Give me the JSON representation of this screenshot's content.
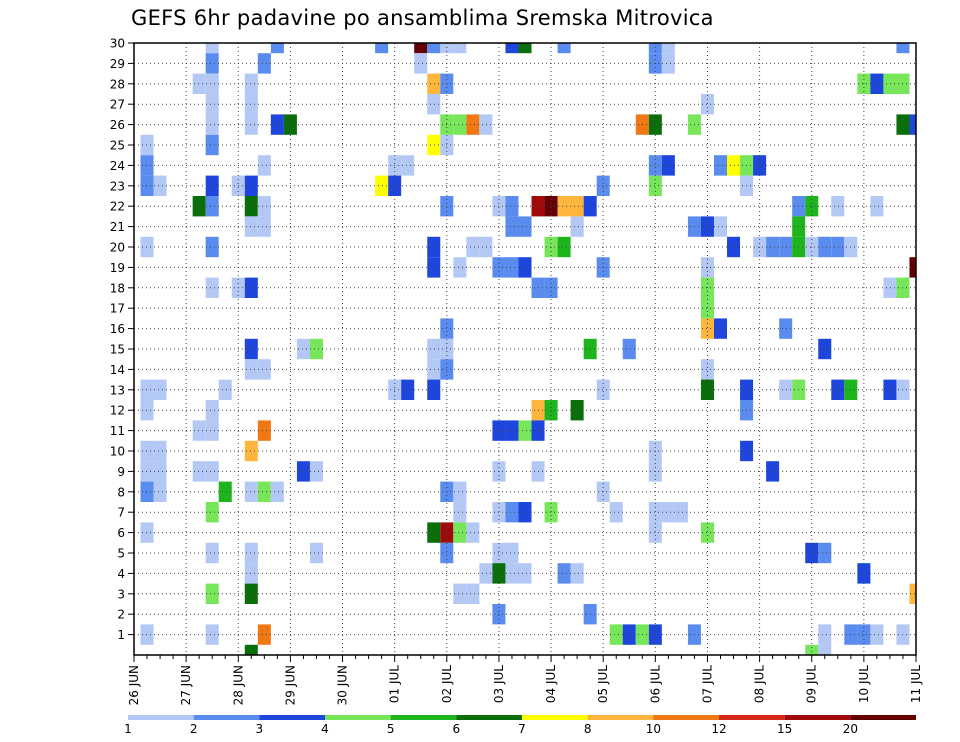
{
  "chart_data": {
    "type": "heatmap",
    "title": "GEFS 6hr padavine po ansamblima Sremska Mitrovica",
    "xlabel": "",
    "ylabel": "",
    "y_range": [
      1,
      30
    ],
    "y_ticks": [
      1,
      2,
      3,
      4,
      5,
      6,
      7,
      8,
      9,
      10,
      11,
      12,
      13,
      14,
      15,
      16,
      17,
      18,
      19,
      20,
      21,
      22,
      23,
      24,
      25,
      26,
      27,
      28,
      29,
      30
    ],
    "x_range": [
      0,
      60
    ],
    "x_ticks": [
      {
        "x": 0,
        "label": "26 JUN"
      },
      {
        "x": 4,
        "label": "27 JUN"
      },
      {
        "x": 8,
        "label": "28 JUN"
      },
      {
        "x": 12,
        "label": "29 JUN"
      },
      {
        "x": 16,
        "label": "30 JUN"
      },
      {
        "x": 20,
        "label": "01 JUL"
      },
      {
        "x": 24,
        "label": "02 JUL"
      },
      {
        "x": 28,
        "label": "03 JUL"
      },
      {
        "x": 32,
        "label": "04 JUL"
      },
      {
        "x": 36,
        "label": "05 JUL"
      },
      {
        "x": 40,
        "label": "06 JUL"
      },
      {
        "x": 44,
        "label": "07 JUL"
      },
      {
        "x": 48,
        "label": "08 JUL"
      },
      {
        "x": 52,
        "label": "09 JUL"
      },
      {
        "x": 56,
        "label": "10 JUL"
      },
      {
        "x": 60,
        "label": "11 JUL"
      }
    ],
    "grid": true,
    "legend": {
      "placement": "bottom",
      "boundaries": [
        "1",
        "2",
        "3",
        "4",
        "5",
        "6",
        "7",
        "8",
        "10",
        "12",
        "15",
        "20"
      ],
      "colors": [
        "#b4c8f5",
        "#5a8cf0",
        "#1e46dc",
        "#78e65a",
        "#1eb41e",
        "#0a6e0a",
        "#ffff00",
        "#ffb43c",
        "#f07814",
        "#d22814",
        "#a00a0a",
        "#640000"
      ]
    },
    "cells": [
      {
        "m": 30,
        "x": 6,
        "c": 1
      },
      {
        "m": 30,
        "x": 11,
        "c": 2
      },
      {
        "m": 30,
        "x": 19,
        "c": 2
      },
      {
        "m": 30,
        "x": 22,
        "c": 12
      },
      {
        "m": 30,
        "x": 23,
        "c": 2
      },
      {
        "m": 30,
        "x": 24,
        "c": 1
      },
      {
        "m": 30,
        "x": 25,
        "c": 1
      },
      {
        "m": 30,
        "x": 29,
        "c": 3
      },
      {
        "m": 30,
        "x": 30,
        "c": 6
      },
      {
        "m": 30,
        "x": 33,
        "c": 2
      },
      {
        "m": 30,
        "x": 40,
        "c": 2
      },
      {
        "m": 30,
        "x": 41,
        "c": 1
      },
      {
        "m": 30,
        "x": 59,
        "c": 2
      },
      {
        "m": 29,
        "x": 6,
        "c": 2
      },
      {
        "m": 29,
        "x": 10,
        "c": 2
      },
      {
        "m": 29,
        "x": 22,
        "c": 1
      },
      {
        "m": 29,
        "x": 40,
        "c": 2
      },
      {
        "m": 29,
        "x": 41,
        "c": 1
      },
      {
        "m": 28,
        "x": 5,
        "c": 1
      },
      {
        "m": 28,
        "x": 6,
        "c": 1
      },
      {
        "m": 28,
        "x": 9,
        "c": 1
      },
      {
        "m": 28,
        "x": 23,
        "c": 8
      },
      {
        "m": 28,
        "x": 24,
        "c": 2
      },
      {
        "m": 28,
        "x": 56,
        "c": 4
      },
      {
        "m": 28,
        "x": 57,
        "c": 3
      },
      {
        "m": 28,
        "x": 58,
        "c": 4
      },
      {
        "m": 28,
        "x": 59,
        "c": 4
      },
      {
        "m": 27,
        "x": 6,
        "c": 1
      },
      {
        "m": 27,
        "x": 9,
        "c": 1
      },
      {
        "m": 27,
        "x": 23,
        "c": 1
      },
      {
        "m": 27,
        "x": 44,
        "c": 1
      },
      {
        "m": 26,
        "x": 6,
        "c": 1
      },
      {
        "m": 26,
        "x": 9,
        "c": 1
      },
      {
        "m": 26,
        "x": 11,
        "c": 3
      },
      {
        "m": 26,
        "x": 12,
        "c": 6
      },
      {
        "m": 26,
        "x": 24,
        "c": 4
      },
      {
        "m": 26,
        "x": 25,
        "c": 4
      },
      {
        "m": 26,
        "x": 26,
        "c": 9
      },
      {
        "m": 26,
        "x": 27,
        "c": 1
      },
      {
        "m": 26,
        "x": 39,
        "c": 9
      },
      {
        "m": 26,
        "x": 40,
        "c": 6
      },
      {
        "m": 26,
        "x": 43,
        "c": 4
      },
      {
        "m": 26,
        "x": 59,
        "c": 6
      },
      {
        "m": 26,
        "x": 60,
        "c": 3
      },
      {
        "m": 25,
        "x": 1,
        "c": 1
      },
      {
        "m": 25,
        "x": 6,
        "c": 2
      },
      {
        "m": 25,
        "x": 23,
        "c": 7
      },
      {
        "m": 25,
        "x": 24,
        "c": 1
      },
      {
        "m": 24,
        "x": 1,
        "c": 2
      },
      {
        "m": 24,
        "x": 10,
        "c": 1
      },
      {
        "m": 24,
        "x": 20,
        "c": 1
      },
      {
        "m": 24,
        "x": 21,
        "c": 1
      },
      {
        "m": 24,
        "x": 40,
        "c": 2
      },
      {
        "m": 24,
        "x": 41,
        "c": 3
      },
      {
        "m": 24,
        "x": 45,
        "c": 2
      },
      {
        "m": 24,
        "x": 46,
        "c": 7
      },
      {
        "m": 24,
        "x": 47,
        "c": 4
      },
      {
        "m": 24,
        "x": 48,
        "c": 3
      },
      {
        "m": 23,
        "x": 1,
        "c": 2
      },
      {
        "m": 23,
        "x": 2,
        "c": 1
      },
      {
        "m": 23,
        "x": 6,
        "c": 3
      },
      {
        "m": 23,
        "x": 8,
        "c": 1
      },
      {
        "m": 23,
        "x": 9,
        "c": 3
      },
      {
        "m": 23,
        "x": 19,
        "c": 7
      },
      {
        "m": 23,
        "x": 20,
        "c": 3
      },
      {
        "m": 23,
        "x": 36,
        "c": 2
      },
      {
        "m": 23,
        "x": 40,
        "c": 4
      },
      {
        "m": 23,
        "x": 47,
        "c": 1
      },
      {
        "m": 22,
        "x": 5,
        "c": 6
      },
      {
        "m": 22,
        "x": 6,
        "c": 2
      },
      {
        "m": 22,
        "x": 9,
        "c": 6
      },
      {
        "m": 22,
        "x": 10,
        "c": 1
      },
      {
        "m": 22,
        "x": 24,
        "c": 2
      },
      {
        "m": 22,
        "x": 28,
        "c": 1
      },
      {
        "m": 22,
        "x": 29,
        "c": 2
      },
      {
        "m": 22,
        "x": 31,
        "c": 11
      },
      {
        "m": 22,
        "x": 32,
        "c": 12
      },
      {
        "m": 22,
        "x": 33,
        "c": 8
      },
      {
        "m": 22,
        "x": 34,
        "c": 8
      },
      {
        "m": 22,
        "x": 35,
        "c": 3
      },
      {
        "m": 22,
        "x": 51,
        "c": 2
      },
      {
        "m": 22,
        "x": 52,
        "c": 5
      },
      {
        "m": 22,
        "x": 54,
        "c": 1
      },
      {
        "m": 22,
        "x": 57,
        "c": 1
      },
      {
        "m": 21,
        "x": 9,
        "c": 1
      },
      {
        "m": 21,
        "x": 10,
        "c": 1
      },
      {
        "m": 21,
        "x": 29,
        "c": 2
      },
      {
        "m": 21,
        "x": 30,
        "c": 2
      },
      {
        "m": 21,
        "x": 34,
        "c": 1
      },
      {
        "m": 21,
        "x": 43,
        "c": 2
      },
      {
        "m": 21,
        "x": 44,
        "c": 3
      },
      {
        "m": 21,
        "x": 45,
        "c": 1
      },
      {
        "m": 21,
        "x": 51,
        "c": 5
      },
      {
        "m": 20,
        "x": 1,
        "c": 1
      },
      {
        "m": 20,
        "x": 6,
        "c": 2
      },
      {
        "m": 20,
        "x": 23,
        "c": 3
      },
      {
        "m": 20,
        "x": 26,
        "c": 1
      },
      {
        "m": 20,
        "x": 27,
        "c": 1
      },
      {
        "m": 20,
        "x": 32,
        "c": 4
      },
      {
        "m": 20,
        "x": 33,
        "c": 5
      },
      {
        "m": 20,
        "x": 46,
        "c": 3
      },
      {
        "m": 20,
        "x": 48,
        "c": 1
      },
      {
        "m": 20,
        "x": 49,
        "c": 2
      },
      {
        "m": 20,
        "x": 50,
        "c": 2
      },
      {
        "m": 20,
        "x": 51,
        "c": 5
      },
      {
        "m": 20,
        "x": 52,
        "c": 1
      },
      {
        "m": 20,
        "x": 53,
        "c": 2
      },
      {
        "m": 20,
        "x": 54,
        "c": 2
      },
      {
        "m": 20,
        "x": 55,
        "c": 1
      },
      {
        "m": 19,
        "x": 23,
        "c": 3
      },
      {
        "m": 19,
        "x": 25,
        "c": 1
      },
      {
        "m": 19,
        "x": 28,
        "c": 2
      },
      {
        "m": 19,
        "x": 29,
        "c": 2
      },
      {
        "m": 19,
        "x": 30,
        "c": 3
      },
      {
        "m": 19,
        "x": 36,
        "c": 2
      },
      {
        "m": 19,
        "x": 44,
        "c": 1
      },
      {
        "m": 19,
        "x": 60,
        "c": 12
      },
      {
        "m": 18,
        "x": 6,
        "c": 1
      },
      {
        "m": 18,
        "x": 8,
        "c": 1
      },
      {
        "m": 18,
        "x": 9,
        "c": 3
      },
      {
        "m": 18,
        "x": 31,
        "c": 2
      },
      {
        "m": 18,
        "x": 32,
        "c": 2
      },
      {
        "m": 18,
        "x": 44,
        "c": 4
      },
      {
        "m": 18,
        "x": 58,
        "c": 1
      },
      {
        "m": 18,
        "x": 59,
        "c": 4
      },
      {
        "m": 17,
        "x": 44,
        "c": 4
      },
      {
        "m": 16,
        "x": 24,
        "c": 2
      },
      {
        "m": 16,
        "x": 44,
        "c": 8
      },
      {
        "m": 16,
        "x": 45,
        "c": 3
      },
      {
        "m": 16,
        "x": 50,
        "c": 2
      },
      {
        "m": 15,
        "x": 9,
        "c": 3
      },
      {
        "m": 15,
        "x": 13,
        "c": 1
      },
      {
        "m": 15,
        "x": 14,
        "c": 4
      },
      {
        "m": 15,
        "x": 23,
        "c": 1
      },
      {
        "m": 15,
        "x": 24,
        "c": 1
      },
      {
        "m": 15,
        "x": 35,
        "c": 5
      },
      {
        "m": 15,
        "x": 38,
        "c": 2
      },
      {
        "m": 15,
        "x": 53,
        "c": 3
      },
      {
        "m": 14,
        "x": 9,
        "c": 1
      },
      {
        "m": 14,
        "x": 10,
        "c": 1
      },
      {
        "m": 14,
        "x": 23,
        "c": 1
      },
      {
        "m": 14,
        "x": 24,
        "c": 2
      },
      {
        "m": 14,
        "x": 44,
        "c": 1
      },
      {
        "m": 13,
        "x": 1,
        "c": 1
      },
      {
        "m": 13,
        "x": 2,
        "c": 1
      },
      {
        "m": 13,
        "x": 7,
        "c": 1
      },
      {
        "m": 13,
        "x": 20,
        "c": 1
      },
      {
        "m": 13,
        "x": 21,
        "c": 3
      },
      {
        "m": 13,
        "x": 23,
        "c": 3
      },
      {
        "m": 13,
        "x": 36,
        "c": 1
      },
      {
        "m": 13,
        "x": 44,
        "c": 6
      },
      {
        "m": 13,
        "x": 47,
        "c": 3
      },
      {
        "m": 13,
        "x": 50,
        "c": 1
      },
      {
        "m": 13,
        "x": 51,
        "c": 4
      },
      {
        "m": 13,
        "x": 54,
        "c": 3
      },
      {
        "m": 13,
        "x": 55,
        "c": 5
      },
      {
        "m": 13,
        "x": 58,
        "c": 3
      },
      {
        "m": 13,
        "x": 59,
        "c": 1
      },
      {
        "m": 12,
        "x": 1,
        "c": 1
      },
      {
        "m": 12,
        "x": 6,
        "c": 1
      },
      {
        "m": 12,
        "x": 31,
        "c": 8
      },
      {
        "m": 12,
        "x": 32,
        "c": 5
      },
      {
        "m": 12,
        "x": 34,
        "c": 6
      },
      {
        "m": 12,
        "x": 47,
        "c": 2
      },
      {
        "m": 11,
        "x": 5,
        "c": 1
      },
      {
        "m": 11,
        "x": 6,
        "c": 1
      },
      {
        "m": 11,
        "x": 10,
        "c": 9
      },
      {
        "m": 11,
        "x": 28,
        "c": 3
      },
      {
        "m": 11,
        "x": 29,
        "c": 3
      },
      {
        "m": 11,
        "x": 30,
        "c": 4
      },
      {
        "m": 11,
        "x": 31,
        "c": 3
      },
      {
        "m": 10,
        "x": 1,
        "c": 1
      },
      {
        "m": 10,
        "x": 2,
        "c": 1
      },
      {
        "m": 10,
        "x": 9,
        "c": 8
      },
      {
        "m": 10,
        "x": 40,
        "c": 1
      },
      {
        "m": 10,
        "x": 47,
        "c": 3
      },
      {
        "m": 9,
        "x": 1,
        "c": 1
      },
      {
        "m": 9,
        "x": 2,
        "c": 1
      },
      {
        "m": 9,
        "x": 5,
        "c": 1
      },
      {
        "m": 9,
        "x": 6,
        "c": 1
      },
      {
        "m": 9,
        "x": 13,
        "c": 3
      },
      {
        "m": 9,
        "x": 14,
        "c": 1
      },
      {
        "m": 9,
        "x": 28,
        "c": 1
      },
      {
        "m": 9,
        "x": 31,
        "c": 1
      },
      {
        "m": 9,
        "x": 40,
        "c": 1
      },
      {
        "m": 9,
        "x": 49,
        "c": 3
      },
      {
        "m": 8,
        "x": 1,
        "c": 2
      },
      {
        "m": 8,
        "x": 2,
        "c": 1
      },
      {
        "m": 8,
        "x": 7,
        "c": 5
      },
      {
        "m": 8,
        "x": 9,
        "c": 1
      },
      {
        "m": 8,
        "x": 10,
        "c": 4
      },
      {
        "m": 8,
        "x": 11,
        "c": 1
      },
      {
        "m": 8,
        "x": 24,
        "c": 2
      },
      {
        "m": 8,
        "x": 25,
        "c": 1
      },
      {
        "m": 8,
        "x": 36,
        "c": 1
      },
      {
        "m": 7,
        "x": 6,
        "c": 4
      },
      {
        "m": 7,
        "x": 25,
        "c": 1
      },
      {
        "m": 7,
        "x": 28,
        "c": 1
      },
      {
        "m": 7,
        "x": 29,
        "c": 2
      },
      {
        "m": 7,
        "x": 30,
        "c": 3
      },
      {
        "m": 7,
        "x": 32,
        "c": 4
      },
      {
        "m": 7,
        "x": 37,
        "c": 1
      },
      {
        "m": 7,
        "x": 40,
        "c": 1
      },
      {
        "m": 7,
        "x": 41,
        "c": 1
      },
      {
        "m": 7,
        "x": 42,
        "c": 1
      },
      {
        "m": 6,
        "x": 1,
        "c": 1
      },
      {
        "m": 6,
        "x": 23,
        "c": 6
      },
      {
        "m": 6,
        "x": 24,
        "c": 11
      },
      {
        "m": 6,
        "x": 25,
        "c": 4
      },
      {
        "m": 6,
        "x": 26,
        "c": 1
      },
      {
        "m": 6,
        "x": 40,
        "c": 1
      },
      {
        "m": 6,
        "x": 44,
        "c": 4
      },
      {
        "m": 5,
        "x": 6,
        "c": 1
      },
      {
        "m": 5,
        "x": 9,
        "c": 1
      },
      {
        "m": 5,
        "x": 14,
        "c": 1
      },
      {
        "m": 5,
        "x": 24,
        "c": 2
      },
      {
        "m": 5,
        "x": 28,
        "c": 1
      },
      {
        "m": 5,
        "x": 29,
        "c": 1
      },
      {
        "m": 5,
        "x": 52,
        "c": 3
      },
      {
        "m": 5,
        "x": 53,
        "c": 2
      },
      {
        "m": 4,
        "x": 9,
        "c": 1
      },
      {
        "m": 4,
        "x": 27,
        "c": 1
      },
      {
        "m": 4,
        "x": 28,
        "c": 6
      },
      {
        "m": 4,
        "x": 29,
        "c": 1
      },
      {
        "m": 4,
        "x": 30,
        "c": 1
      },
      {
        "m": 4,
        "x": 33,
        "c": 2
      },
      {
        "m": 4,
        "x": 34,
        "c": 1
      },
      {
        "m": 4,
        "x": 56,
        "c": 3
      },
      {
        "m": 3,
        "x": 6,
        "c": 4
      },
      {
        "m": 3,
        "x": 9,
        "c": 6
      },
      {
        "m": 3,
        "x": 25,
        "c": 1
      },
      {
        "m": 3,
        "x": 26,
        "c": 1
      },
      {
        "m": 3,
        "x": 60,
        "c": 8
      },
      {
        "m": 2,
        "x": 28,
        "c": 2
      },
      {
        "m": 2,
        "x": 35,
        "c": 2
      },
      {
        "m": 1,
        "x": 1,
        "c": 1
      },
      {
        "m": 1,
        "x": 6,
        "c": 1
      },
      {
        "m": 1,
        "x": 10,
        "c": 9
      },
      {
        "m": 1,
        "x": 37,
        "c": 4
      },
      {
        "m": 1,
        "x": 38,
        "c": 3
      },
      {
        "m": 1,
        "x": 39,
        "c": 4
      },
      {
        "m": 1,
        "x": 40,
        "c": 3
      },
      {
        "m": 1,
        "x": 43,
        "c": 2
      },
      {
        "m": 1,
        "x": 53,
        "c": 1
      },
      {
        "m": 1,
        "x": 55,
        "c": 2
      },
      {
        "m": 1,
        "x": 56,
        "c": 2
      },
      {
        "m": 1,
        "x": 57,
        "c": 1
      },
      {
        "m": 1,
        "x": 59,
        "c": 1
      },
      {
        "m": 0,
        "x": 9,
        "c": 6
      },
      {
        "m": 0,
        "x": 52,
        "c": 4
      },
      {
        "m": 0,
        "x": 53,
        "c": 1
      }
    ]
  }
}
